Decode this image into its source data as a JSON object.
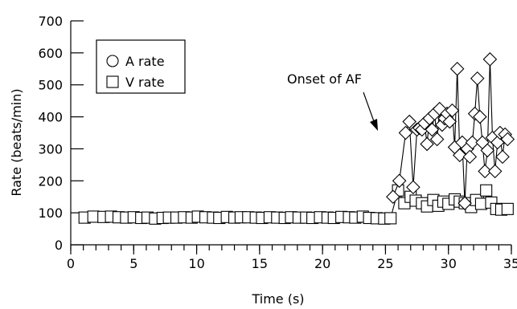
{
  "chart_data": {
    "type": "line",
    "xlabel": "Time (s)",
    "ylabel": "Rate (beats/min)",
    "xlim": [
      0,
      35
    ],
    "ylim": [
      0,
      700
    ],
    "xticks": [
      0,
      5,
      10,
      15,
      20,
      25,
      30,
      35
    ],
    "yticks": [
      0,
      100,
      200,
      300,
      400,
      500,
      600,
      700
    ],
    "xtick_labels": [
      "0",
      "5",
      "10",
      "15",
      "20",
      "25",
      "30",
      "35"
    ],
    "ytick_labels": [
      "0",
      "100",
      "200",
      "300",
      "400",
      "500",
      "600",
      "700"
    ],
    "x_minor_step": 1,
    "grid": false,
    "legend_position": "top-left",
    "legend": [
      {
        "label": "A rate",
        "marker": "circle"
      },
      {
        "label": "V rate",
        "marker": "square"
      }
    ],
    "annotation": {
      "text": "Onset of AF",
      "points_to": [
        26.0,
        200
      ]
    },
    "series": [
      {
        "marker": "square",
        "x": [
          1.1,
          1.8,
          2.6,
          3.2,
          3.8,
          4.4,
          5.0,
          5.6,
          6.1,
          6.7,
          7.3,
          7.8,
          8.4,
          9.0,
          9.6,
          10.1,
          10.7,
          11.3,
          11.8,
          12.4,
          13.0,
          13.5,
          14.1,
          14.7,
          15.2,
          15.8,
          16.4,
          17.0,
          17.5,
          18.1,
          18.7,
          19.2,
          19.8,
          20.4,
          20.9,
          21.5,
          22.1,
          22.6,
          23.2,
          23.7,
          24.3,
          24.9,
          25.4,
          26.0,
          26.5,
          27.0,
          27.4,
          27.9,
          28.3,
          28.8,
          29.2,
          29.6,
          30.0,
          30.5,
          30.9,
          31.3,
          31.8,
          32.2,
          32.6,
          33.0,
          33.4,
          33.8,
          34.2,
          34.7
        ],
        "values": [
          85,
          88,
          87,
          88,
          86,
          85,
          86,
          84,
          85,
          82,
          84,
          85,
          85,
          86,
          85,
          88,
          86,
          85,
          84,
          87,
          85,
          86,
          86,
          85,
          84,
          86,
          85,
          84,
          86,
          85,
          85,
          84,
          86,
          85,
          84,
          87,
          86,
          85,
          88,
          84,
          83,
          82,
          83,
          170,
          130,
          150,
          138,
          130,
          120,
          140,
          122,
          135,
          128,
          142,
          135,
          130,
          118,
          140,
          128,
          170,
          132,
          112,
          110,
          112
        ]
      },
      {
        "marker": "diamond",
        "x": [
          25.6,
          26.1,
          26.6,
          26.9,
          27.2,
          27.5,
          27.7,
          27.9,
          28.1,
          28.3,
          28.5,
          28.7,
          28.9,
          29.1,
          29.3,
          29.5,
          29.7,
          29.9,
          30.1,
          30.3,
          30.5,
          30.7,
          30.9,
          31.1,
          31.3,
          31.5,
          31.7,
          31.9,
          32.1,
          32.3,
          32.5,
          32.7,
          32.9,
          33.1,
          33.3,
          33.5,
          33.7,
          33.9,
          34.1,
          34.3,
          34.5,
          34.7
        ],
        "values": [
          150,
          200,
          350,
          385,
          180,
          360,
          365,
          360,
          380,
          315,
          395,
          360,
          410,
          330,
          425,
          375,
          395,
          410,
          385,
          420,
          305,
          550,
          280,
          320,
          130,
          300,
          275,
          320,
          410,
          520,
          400,
          320,
          230,
          295,
          580,
          335,
          230,
          320,
          350,
          275,
          345,
          330
        ]
      }
    ]
  }
}
